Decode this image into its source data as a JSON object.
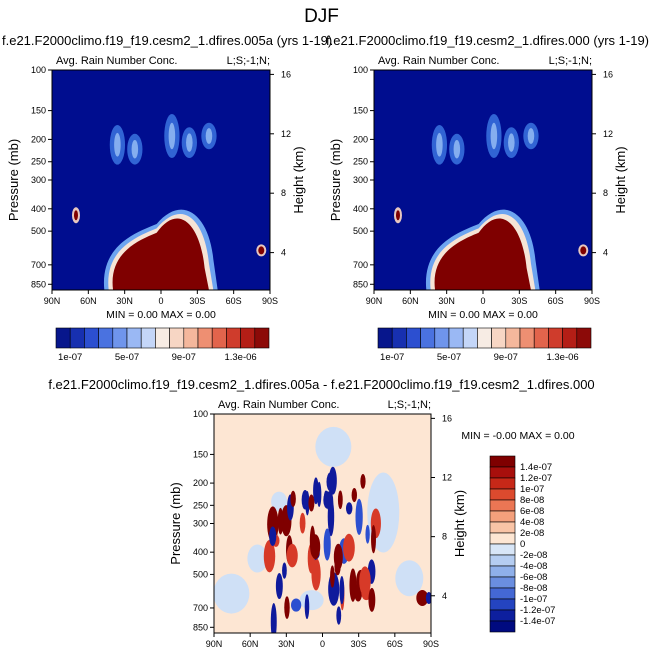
{
  "main_title": "DJF",
  "diff_title": "f.e21.F2000climo.f19_f19.cesm2_1.dfires.005a - f.e21.F2000climo.f19_f19.cesm2_1.dfires.000",
  "panels": [
    {
      "title": "f.e21.F2000climo.f19_f19.cesm2_1.dfires.005a (yrs 1-19)",
      "left_label": "Avg. Rain Number Conc.",
      "right_label": "L;S;-1;N;",
      "minmax": "MIN =  0.00   MAX =  0.00"
    },
    {
      "title": "f.e21.F2000climo.f19_f19.cesm2_1.dfires.000 (yrs 1-19)",
      "left_label": "Avg. Rain Number Conc.",
      "right_label": "L;S;-1;N;",
      "minmax": "MIN =  0.00   MAX =  0.00"
    },
    {
      "title": "",
      "left_label": "Avg. Rain Number Conc.",
      "right_label": "L;S;-1;N;",
      "minmax": "MIN = -0.00   MAX =  0.00"
    }
  ],
  "axis_labels": {
    "y_left": "Pressure (mb)",
    "y_right": "Height (km)"
  },
  "colors": {
    "dark_red": "#7f0000",
    "dark_blue": "#000d8f",
    "navy": "#0f1a9c",
    "diff_background": "#fde6d3"
  },
  "chart_data": [
    {
      "type": "heatmap",
      "title": "Avg. Rain Number Conc.",
      "xlabel": "",
      "ylabel": "Pressure (mb)",
      "y2label": "Height (km)",
      "x_ticks": [
        "90N",
        "60N",
        "30N",
        "0",
        "30S",
        "60S",
        "90S"
      ],
      "y_ticks": [
        "100",
        "150",
        "200",
        "250",
        "300",
        "400",
        "500",
        "700",
        "850"
      ],
      "y2_ticks": [
        "16",
        "12",
        "8",
        "4"
      ],
      "min": "0.00",
      "max": "0.00",
      "colorbar_labels": [
        "1e-07",
        "5e-07",
        "9e-07",
        "1.3e-06"
      ]
    },
    {
      "type": "heatmap",
      "title": "Avg. Rain Number Conc.",
      "xlabel": "",
      "ylabel": "Pressure (mb)",
      "y2label": "Height (km)",
      "x_ticks": [
        "90N",
        "60N",
        "30N",
        "0",
        "30S",
        "60S",
        "90S"
      ],
      "y_ticks": [
        "100",
        "150",
        "200",
        "250",
        "300",
        "400",
        "500",
        "700",
        "850"
      ],
      "y2_ticks": [
        "16",
        "12",
        "8",
        "4"
      ],
      "min": "0.00",
      "max": "0.00",
      "colorbar_labels": [
        "1e-07",
        "5e-07",
        "9e-07",
        "1.3e-06"
      ]
    },
    {
      "type": "heatmap",
      "title": "Avg. Rain Number Conc.",
      "xlabel": "",
      "ylabel": "Pressure (mb)",
      "y2label": "Height (km)",
      "x_ticks": [
        "90N",
        "60N",
        "30N",
        "0",
        "30S",
        "60S",
        "90S"
      ],
      "y_ticks": [
        "100",
        "150",
        "200",
        "250",
        "300",
        "400",
        "500",
        "700",
        "850"
      ],
      "y2_ticks": [
        "16",
        "12",
        "8",
        "4"
      ],
      "min": "-0.00",
      "max": "0.00",
      "colorbar_labels": [
        "1.4e-07",
        "1.2e-07",
        "1e-07",
        "8e-08",
        "6e-08",
        "4e-08",
        "2e-08",
        "0",
        "-2e-08",
        "-4e-08",
        "-6e-08",
        "-8e-08",
        "-1e-07",
        "-1.2e-07",
        "-1.4e-07"
      ]
    }
  ]
}
